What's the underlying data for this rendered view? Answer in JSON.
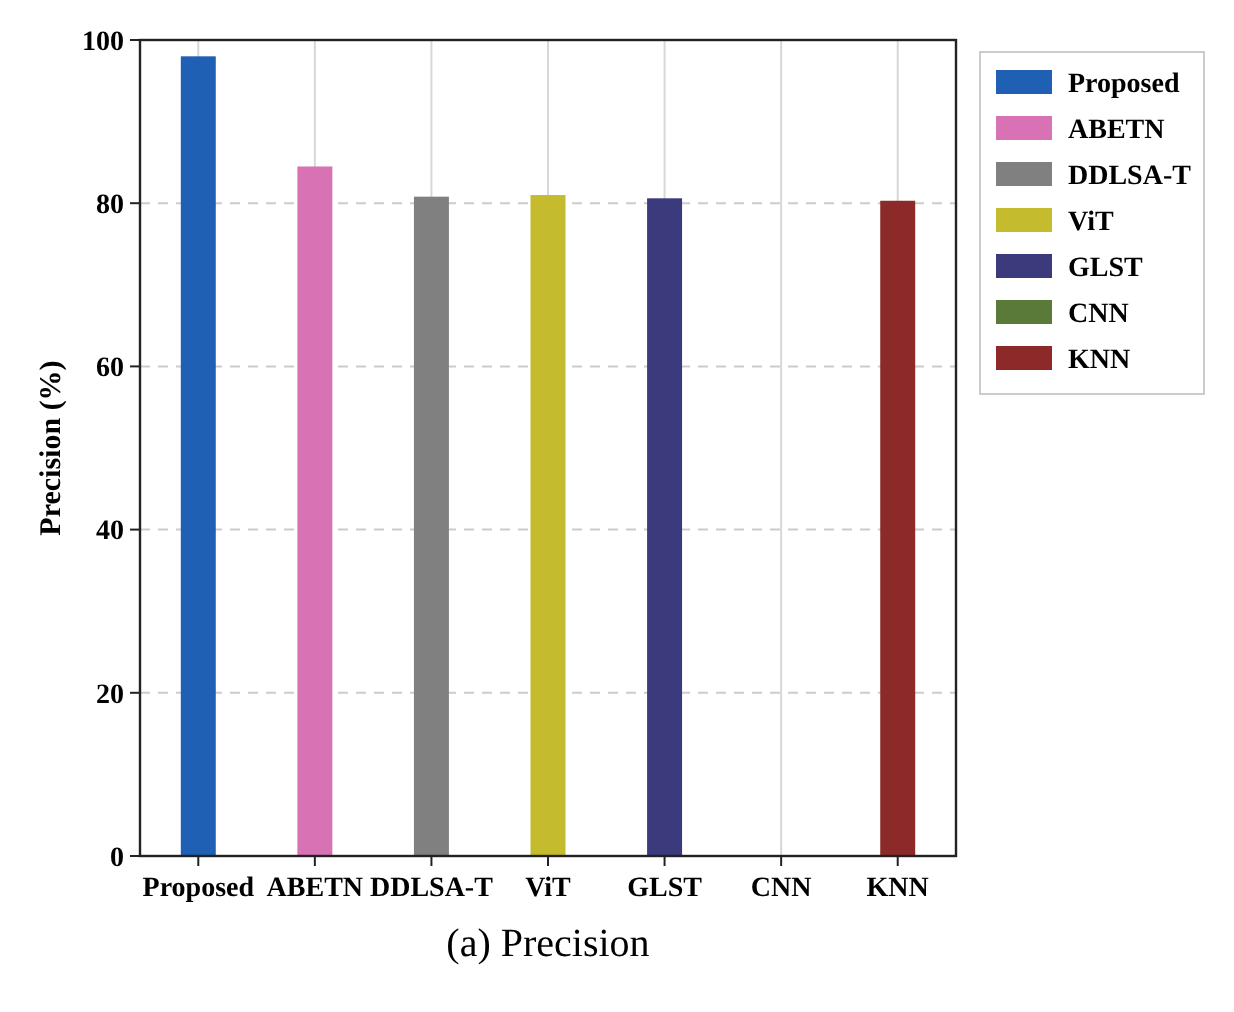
{
  "chart_data": {
    "type": "bar",
    "title": "(a) Precision",
    "ylabel": "Precision (%)",
    "categories": [
      "Proposed",
      "ABETN",
      "DDLSA-T",
      "ViT",
      "GLST",
      "CNN",
      "KNN"
    ],
    "series": [
      {
        "name": "Proposed",
        "color": "#1f5fb4",
        "values": [
          98.0,
          null,
          null,
          null,
          null,
          null,
          null
        ]
      },
      {
        "name": "ABETN",
        "color": "#d872b4",
        "values": [
          null,
          84.5,
          null,
          null,
          null,
          null,
          null
        ]
      },
      {
        "name": "DDLSA-T",
        "color": "#808080",
        "values": [
          null,
          null,
          80.8,
          null,
          null,
          null,
          null
        ]
      },
      {
        "name": "ViT",
        "color": "#c4bc2e",
        "values": [
          null,
          null,
          null,
          81.0,
          null,
          null,
          null
        ]
      },
      {
        "name": "GLST",
        "color": "#3a3a7c",
        "values": [
          null,
          null,
          null,
          null,
          80.6,
          null,
          null
        ]
      },
      {
        "name": "CNN",
        "color": "#5a7a3a",
        "values": [
          null,
          null,
          null,
          null,
          null,
          null,
          null
        ]
      },
      {
        "name": "KNN",
        "color": "#8c2a2a",
        "values": [
          null,
          null,
          null,
          null,
          null,
          null,
          80.3
        ]
      }
    ],
    "ylim": [
      0,
      100
    ],
    "yticks": [
      0,
      20,
      40,
      60,
      80,
      100
    ],
    "grid": true,
    "legend": "right"
  }
}
